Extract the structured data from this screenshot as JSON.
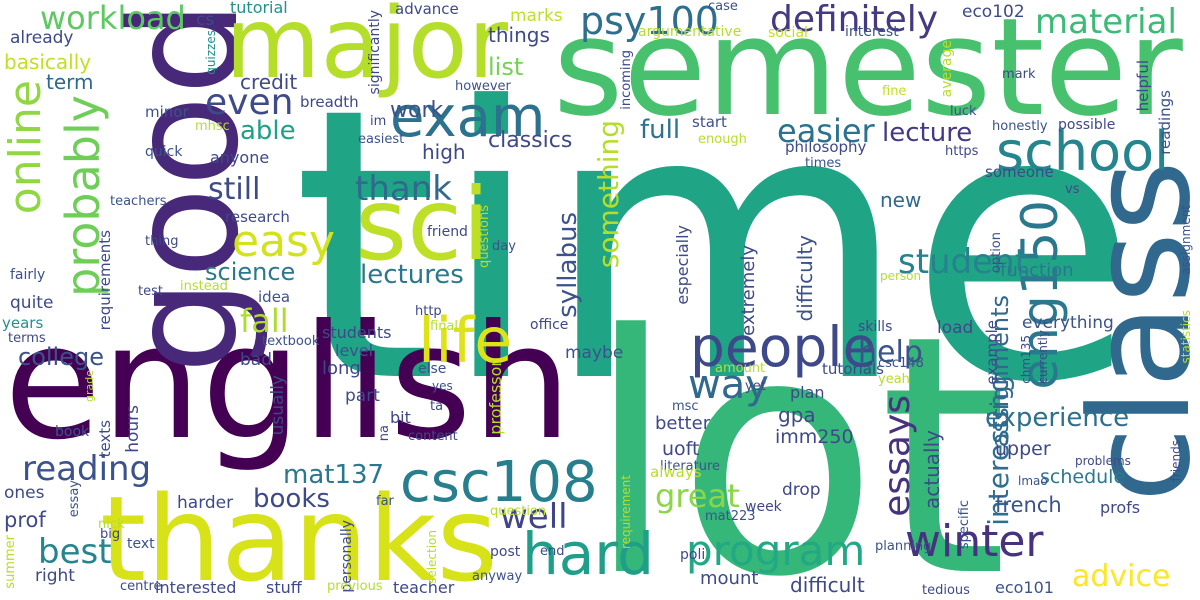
{
  "background": "#ffffff",
  "palette": {
    "dark_purple": "#440154",
    "purple": "#482878",
    "indigo": "#3e4989",
    "blue": "#31688e",
    "teal_blue": "#26828e",
    "teal": "#1f9e89",
    "green": "#35b779",
    "light_green": "#6ece58",
    "yellow_green": "#b5de2b",
    "yellow": "#fde725"
  },
  "words": {
    "time": "time",
    "lot": "lot",
    "semester": "semester",
    "class": "class",
    "english": "english",
    "good": "good",
    "thanks": "thanks",
    "major": "major",
    "sci": "sci",
    "exam": "exam",
    "life": "life",
    "people": "people",
    "hard": "hard",
    "csc108": "csc108",
    "school": "school",
    "eng150": "eng150",
    "winter": "winter",
    "program": "program",
    "probably": "probably",
    "online": "online",
    "definitely": "definitely",
    "psy100": "psy100",
    "material": "material",
    "workload": "workload",
    "easy": "easy",
    "even": "even",
    "way": "way",
    "thank": "thank",
    "easier": "easier",
    "student": "student",
    "essays": "essays",
    "reading": "reading",
    "best": "best",
    "well": "well",
    "great": "great",
    "advice": "advice",
    "lectures": "lectures",
    "help": "help",
    "fall": "fall",
    "experience": "experience",
    "books": "books",
    "mat137": "mat137",
    "something": "something",
    "syllabus": "syllabus",
    "interesting": "interesting",
    "assignments": "assignments",
    "still": "still",
    "able": "able",
    "science": "science",
    "college": "college",
    "lecture": "lecture",
    "full": "full",
    "classics": "classics",
    "high": "high",
    "list": "list",
    "things": "things",
    "work": "work",
    "credit": "credit",
    "term": "term",
    "basically": "basically",
    "already": "already",
    "cs": "cs",
    "tutorial": "tutorial",
    "advance": "advance",
    "marks": "marks",
    "case": "case",
    "eco102": "eco102",
    "significantly": "significantly",
    "argumentative": "argumentative",
    "social": "social",
    "interest": "interest",
    "average": "average",
    "quizzes": "quizzes",
    "incoming": "incoming",
    "however": "however",
    "breadth": "breadth",
    "minor": "minor",
    "mhsc": "mhsc",
    "im": "im",
    "easiest": "easiest",
    "quick": "quick",
    "anyone": "anyone",
    "start": "start",
    "enough": "enough",
    "fine": "fine",
    "luck": "luck",
    "mark": "mark",
    "honestly": "honestly",
    "possible": "possible",
    "philosophy": "philosophy",
    "https": "https",
    "times": "times",
    "helpful": "helpful",
    "readings": "readings",
    "someone": "someone",
    "new": "new",
    "research": "research",
    "teachers": "teachers",
    "thing": "thing",
    "requirements": "requirements",
    "fairly": "fairly",
    "test": "test",
    "instead": "instead",
    "quite": "quite",
    "idea": "idea",
    "years": "years",
    "terms": "terms",
    "friend": "friend",
    "questions": "questions",
    "day": "day",
    "http": "http",
    "final": "final",
    "students": "students",
    "level": "level",
    "long": "long",
    "bad": "bad",
    "textbook": "textbook",
    "usually": "usually",
    "hours": "hours",
    "texts": "texts",
    "grade": "grade",
    "book": "book",
    "part": "part",
    "bit": "bit",
    "else": "else",
    "ta": "ta",
    "na": "na",
    "yes": "yes",
    "content": "content",
    "professor": "professor",
    "office": "office",
    "maybe": "maybe",
    "tutorials": "tutorials",
    "amount": "amount",
    "yet": "yet",
    "msc": "msc",
    "especially": "especially",
    "extremely": "extremely",
    "difficulty": "difficulty",
    "actually": "actually",
    "function": "function",
    "option": "option",
    "person": "person",
    "vs": "vs",
    "assignment": "assignment",
    "statistics": "statistics",
    "skills": "skills",
    "load": "load",
    "example": "example",
    "everything": "everything",
    "chm135": "chm135",
    "csc148": "csc148",
    "yeah": "yeah",
    "currently": "currently",
    "plan": "plan",
    "better": "better",
    "gpa": "gpa",
    "imm250": "imm250",
    "uoft": "uoft",
    "literature": "literature",
    "always": "always",
    "drop": "drop",
    "upper": "upper",
    "schedule": "schedule",
    "french": "french",
    "problems": "problems",
    "lmao": "lmao",
    "friends": "friends",
    "profs": "profs",
    "specific": "specific",
    "harder": "harder",
    "prof": "prof",
    "ones": "ones",
    "essay": "essay",
    "nick": "nick",
    "big": "big",
    "right": "right",
    "text": "text",
    "summer": "summer",
    "centre": "centre",
    "interested": "interested",
    "stuff": "stuff",
    "personally": "personally",
    "previous": "previous",
    "teacher": "teacher",
    "far": "far",
    "question": "question",
    "post": "post",
    "end": "end",
    "anyway": "anyway",
    "requirement": "requirement",
    "selection": "selection",
    "poli": "poli",
    "mat223": "mat223",
    "week": "week",
    "mount": "mount",
    "difficult": "difficult",
    "planning": "planning",
    "tedious": "tedious",
    "eco101": "eco101"
  }
}
